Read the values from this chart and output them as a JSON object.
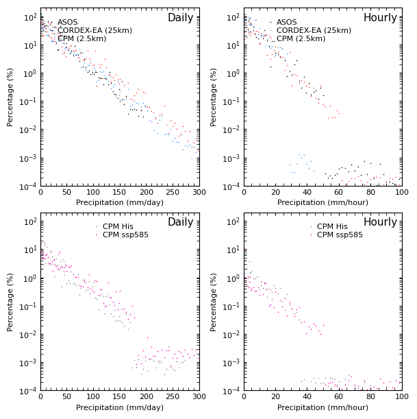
{
  "panels": {
    "top_left": {
      "title": "Daily",
      "xlabel": "Precipitation (mm/day)",
      "ylabel": "Percentage (%)",
      "xlim": [
        0,
        300
      ],
      "ylim": [
        0.0001,
        200
      ],
      "xticks": [
        0,
        50,
        100,
        150,
        200,
        250,
        300
      ],
      "legend_labels": [
        "ASOS",
        "CORDEX-EA (25km)",
        "CPM (2.5km)"
      ],
      "legend_colors": [
        "#000000",
        "#4499FF",
        "#FF3333"
      ]
    },
    "top_right": {
      "title": "Hourly",
      "xlabel": "Precipitation (mm/hour)",
      "ylabel": "Percentage (%)",
      "xlim": [
        0,
        100
      ],
      "ylim": [
        0.0001,
        200
      ],
      "xticks": [
        0,
        20,
        40,
        60,
        80,
        100
      ],
      "legend_labels": [
        "ASOS",
        "CORDEX-EA (25km)",
        "CPM (2.5km)"
      ],
      "legend_colors": [
        "#000000",
        "#4499FF",
        "#FF3333"
      ]
    },
    "bottom_left": {
      "title": "Daily",
      "xlabel": "Precipitation (mm/day)",
      "ylabel": "Percentage (%)",
      "xlim": [
        0,
        300
      ],
      "ylim": [
        0.0001,
        200
      ],
      "xticks": [
        0,
        50,
        100,
        150,
        200,
        250,
        300
      ],
      "legend_labels": [
        "CPM His",
        "CPM ssp585"
      ],
      "legend_colors": [
        "#888888",
        "#FF00BB"
      ]
    },
    "bottom_right": {
      "title": "Hourly",
      "xlabel": "Precipitation (mm/hour)",
      "ylabel": "Percentage (%)",
      "xlim": [
        0,
        100
      ],
      "ylim": [
        0.0001,
        200
      ],
      "xticks": [
        0,
        20,
        40,
        60,
        80,
        100
      ],
      "legend_labels": [
        "CPM His",
        "CPM ssp585"
      ],
      "legend_colors": [
        "#888888",
        "#FF00BB"
      ]
    }
  },
  "background_color": "#FFFFFF",
  "title_fontsize": 11,
  "label_fontsize": 8,
  "tick_fontsize": 8,
  "legend_fontsize": 8
}
